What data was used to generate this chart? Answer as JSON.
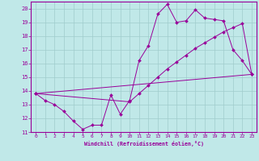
{
  "xlabel": "Windchill (Refroidissement éolien,°C)",
  "xlim": [
    -0.5,
    23.5
  ],
  "ylim": [
    11,
    20.5
  ],
  "yticks": [
    11,
    12,
    13,
    14,
    15,
    16,
    17,
    18,
    19,
    20
  ],
  "xticks": [
    0,
    1,
    2,
    3,
    4,
    5,
    6,
    7,
    8,
    9,
    10,
    11,
    12,
    13,
    14,
    15,
    16,
    17,
    18,
    19,
    20,
    21,
    22,
    23
  ],
  "bg_color": "#c0e8e8",
  "grid_color": "#a0cccc",
  "line_color": "#990099",
  "line1_x": [
    0,
    1,
    2,
    3,
    4,
    5,
    6,
    7,
    8,
    9,
    10,
    11,
    12,
    13,
    14,
    15,
    16,
    17,
    18,
    19,
    20,
    21,
    22,
    23
  ],
  "line1_y": [
    13.8,
    13.3,
    13.0,
    12.5,
    11.8,
    11.2,
    11.5,
    11.5,
    13.7,
    12.3,
    13.3,
    16.2,
    17.3,
    19.6,
    20.3,
    19.0,
    19.1,
    19.9,
    19.3,
    19.2,
    19.1,
    17.0,
    16.2,
    15.2
  ],
  "line2_x": [
    0,
    23
  ],
  "line2_y": [
    13.8,
    15.2
  ],
  "line3_x": [
    0,
    10,
    11,
    12,
    13,
    14,
    15,
    16,
    17,
    18,
    19,
    20,
    21,
    22,
    23
  ],
  "line3_y": [
    13.8,
    13.2,
    13.8,
    14.4,
    15.0,
    15.6,
    16.1,
    16.6,
    17.1,
    17.5,
    17.9,
    18.3,
    18.6,
    18.9,
    15.2
  ]
}
